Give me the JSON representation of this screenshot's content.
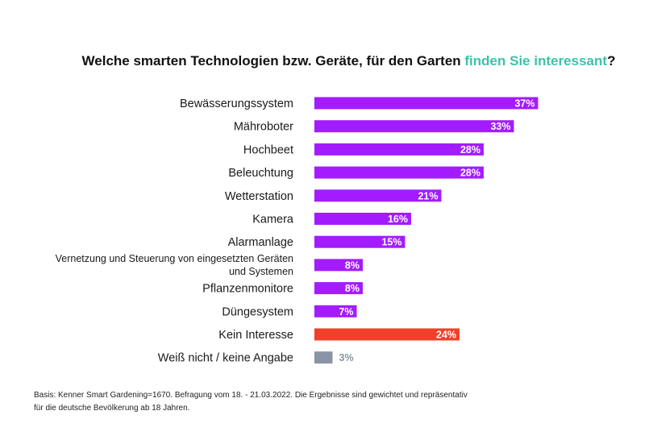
{
  "title": {
    "part1": "Welche smarten Technologien bzw. Geräte, für den Garten ",
    "accent": "finden Sie interessant",
    "part2": "?"
  },
  "colors": {
    "bar_primary": "#a31cff",
    "bar_no_interest": "#f0402a",
    "bar_unknown": "#8a94a6",
    "accent_text": "#3fc2a8"
  },
  "chart_data": {
    "type": "bar",
    "orientation": "horizontal",
    "categories": [
      "Bewässerungssystem",
      "Mähroboter",
      "Hochbeet",
      "Beleuchtung",
      "Wetterstation",
      "Kamera",
      "Alarmanlage",
      "Vernetzung und Steuerung von eingesetzten Geräten und Systemen",
      "Pflanzenmonitore",
      "Düngesystem",
      "Kein Interesse",
      "Weiß nicht / keine Angabe"
    ],
    "values": [
      37,
      33,
      28,
      28,
      21,
      16,
      15,
      8,
      8,
      7,
      24,
      3
    ],
    "data_labels": [
      "37%",
      "33%",
      "28%",
      "28%",
      "21%",
      "16%",
      "15%",
      "8%",
      "8%",
      "7%",
      "24%",
      "3%"
    ],
    "bar_colors": [
      "#a31cff",
      "#a31cff",
      "#a31cff",
      "#a31cff",
      "#a31cff",
      "#a31cff",
      "#a31cff",
      "#a31cff",
      "#a31cff",
      "#a31cff",
      "#f0402a",
      "#8a94a6"
    ],
    "xlim": [
      0,
      40
    ],
    "grid": false,
    "legend": "none"
  },
  "footnote": "Basis: Kenner Smart Gardening=1670. Befragung vom 18. - 21.03.2022. Die Ergebnisse sind gewichtet und repräsentativ für die deutsche Bevölkerung ab 18 Jahren."
}
